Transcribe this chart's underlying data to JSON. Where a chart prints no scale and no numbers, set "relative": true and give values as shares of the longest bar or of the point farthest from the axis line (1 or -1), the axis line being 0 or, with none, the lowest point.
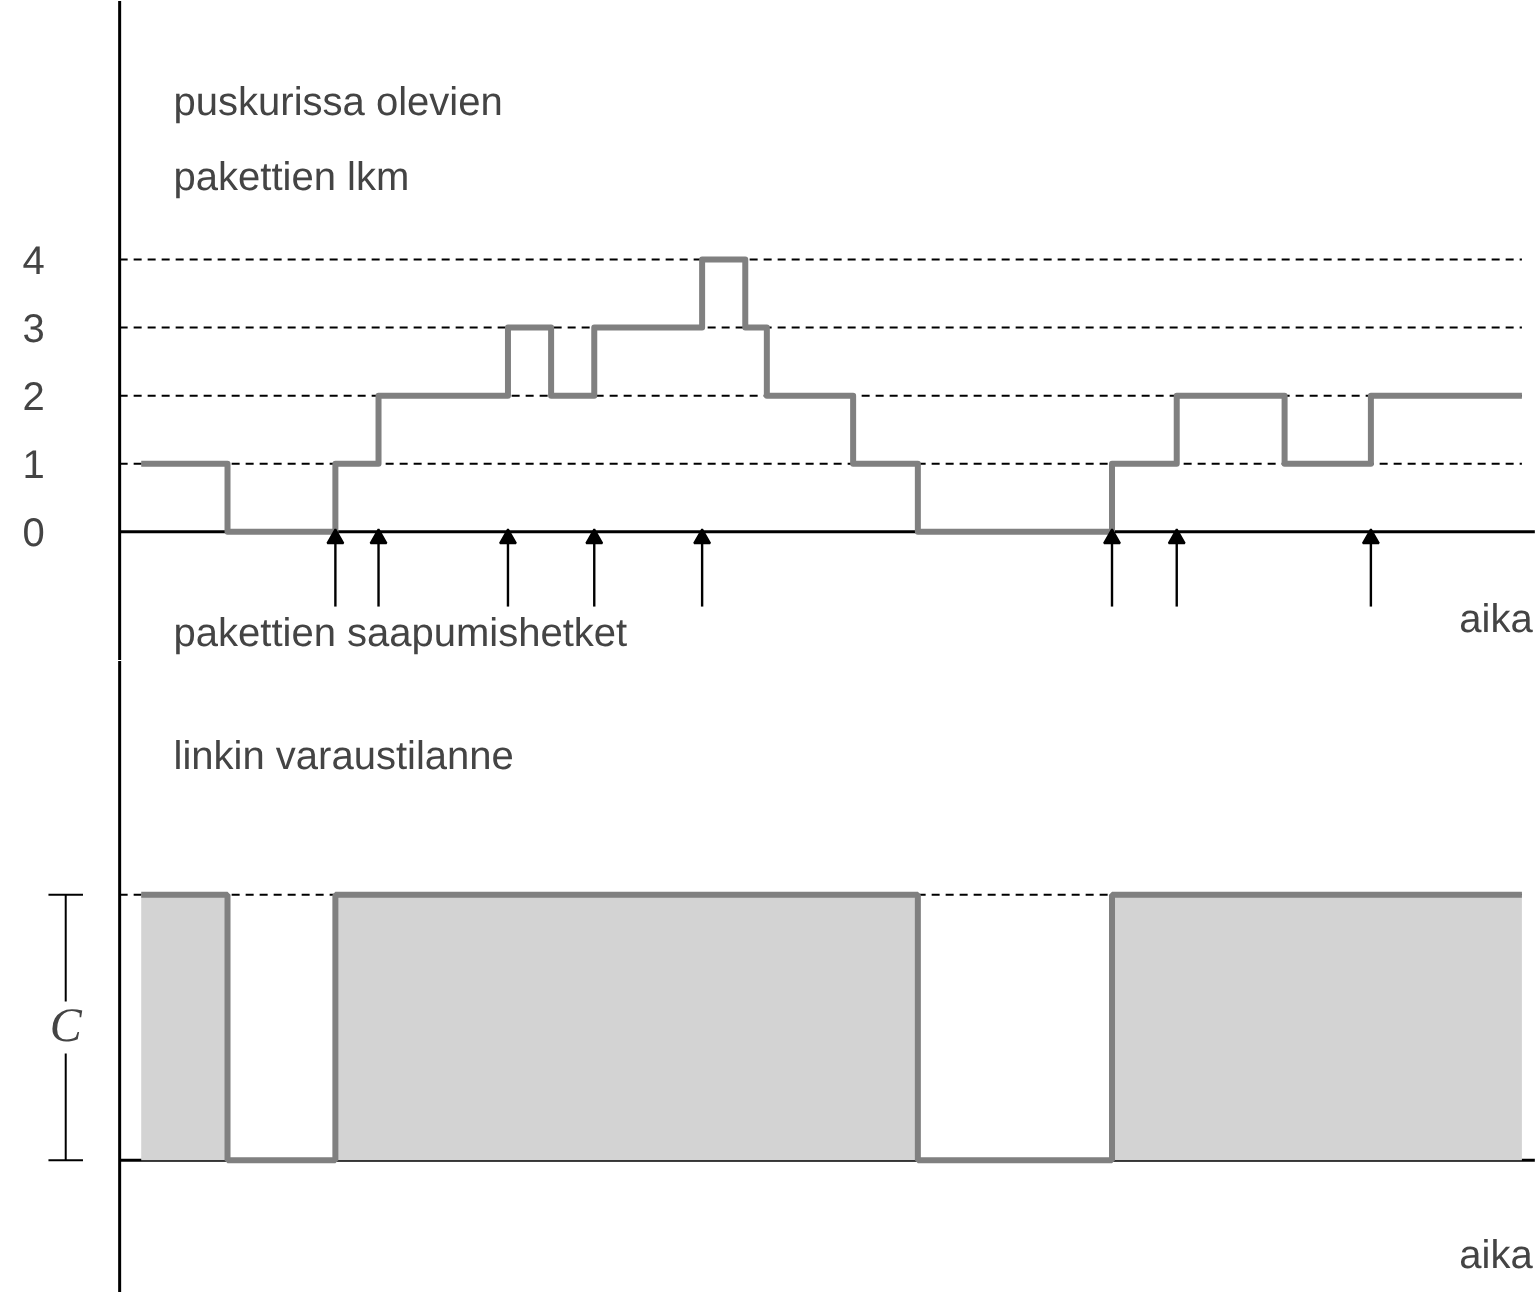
{
  "chart_data": [
    {
      "type": "step",
      "title": "puskurissa olevien pakettien lkm",
      "xlabel": "aika",
      "categories": [
        null,
        null,
        null,
        null,
        null,
        null,
        null,
        null,
        null,
        null,
        null,
        null,
        null,
        null,
        null,
        null,
        null,
        null,
        null,
        null,
        null,
        null,
        null,
        null,
        null,
        null,
        null,
        null,
        null,
        null,
        null,
        null,
        null,
        null,
        null,
        null,
        null,
        null,
        null,
        null,
        null,
        null,
        null,
        null,
        null,
        null,
        null,
        null,
        null,
        null,
        null,
        null,
        null,
        null,
        null,
        null,
        null,
        null,
        null,
        null,
        null,
        null,
        null,
        null,
        null
      ],
      "series": [
        {
          "color": "#808080",
          "values": [
            1,
            1,
            1,
            1,
            0,
            0,
            0,
            0,
            0,
            1,
            1,
            2,
            2,
            2,
            2,
            2,
            2,
            3,
            3,
            2,
            2,
            3,
            3,
            3,
            3,
            3,
            4,
            4,
            3,
            2,
            2,
            2,
            2,
            1,
            1,
            1,
            0,
            0,
            0,
            0,
            0,
            0,
            0,
            0,
            0,
            1,
            1,
            1,
            2,
            2,
            2,
            2,
            2,
            1,
            1,
            1,
            1,
            2,
            2,
            2,
            2,
            2,
            2,
            2,
            2
          ]
        },
        {
          "type": "scatter",
          "marker": "triangle",
          "color": "#000000",
          "values": [
            null,
            null,
            null,
            null,
            null,
            null,
            null,
            null,
            null,
            -0.1,
            null,
            -0.1,
            null,
            null,
            null,
            null,
            null,
            -0.1,
            null,
            null,
            null,
            -0.1,
            null,
            null,
            null,
            null,
            -0.1,
            null,
            null,
            null,
            null,
            null,
            null,
            null,
            null,
            null,
            null,
            null,
            null,
            null,
            null,
            null,
            null,
            null,
            null,
            -0.1,
            null,
            null,
            -0.1,
            null,
            null,
            null,
            null,
            null,
            null,
            null,
            null,
            -0.1,
            null,
            null,
            null,
            null,
            null,
            null,
            null
          ],
          "errors": [
            null,
            null,
            null,
            null,
            null,
            null,
            null,
            null,
            null,
            [
              -1.1,
              -0.1
            ],
            null,
            [
              -1.1,
              -0.1
            ],
            null,
            null,
            null,
            null,
            null,
            [
              -1.1,
              -0.1
            ],
            null,
            null,
            null,
            [
              -1.1,
              -0.1
            ],
            null,
            null,
            null,
            null,
            [
              -1.1,
              -0.1
            ],
            null,
            null,
            null,
            null,
            null,
            null,
            null,
            null,
            null,
            null,
            null,
            null,
            null,
            null,
            null,
            null,
            null,
            null,
            [
              -1.1,
              -0.1
            ],
            null,
            null,
            [
              -1.1,
              -0.1
            ],
            null,
            null,
            null,
            null,
            null,
            null,
            null,
            null,
            [
              -1.1,
              -0.1
            ],
            null,
            null,
            null,
            null,
            null,
            null,
            null
          ]
        }
      ],
      "ylim": [
        -1.9,
        7.8
      ],
      "yticks": [
        0,
        1,
        2,
        3,
        4
      ],
      "grid": "y",
      "tick_labels": "y",
      "annotations": [
        "pakettien saapumishetket"
      ]
    },
    {
      "type": "area",
      "relative": true,
      "title": "linkin varaustilanne",
      "xlabel": "aika",
      "ylabel": "C",
      "categories": [
        null,
        null,
        null,
        null,
        null,
        null,
        null,
        null,
        null,
        null,
        null,
        null,
        null,
        null,
        null,
        null,
        null,
        null,
        null,
        null,
        null,
        null,
        null,
        null,
        null,
        null,
        null,
        null,
        null,
        null,
        null,
        null,
        null,
        null,
        null,
        null,
        null,
        null,
        null,
        null,
        null,
        null,
        null,
        null,
        null,
        null,
        null,
        null,
        null,
        null,
        null,
        null,
        null,
        null,
        null,
        null,
        null,
        null,
        null,
        null,
        null,
        null,
        null,
        null,
        null
      ],
      "series": [
        {
          "color": "#d3d3d3",
          "values": [
            1,
            1,
            1,
            1,
            0,
            0,
            0,
            0,
            0,
            1,
            1,
            1,
            1,
            1,
            1,
            1,
            1,
            1,
            1,
            1,
            1,
            1,
            1,
            1,
            1,
            1,
            1,
            1,
            1,
            1,
            1,
            1,
            1,
            1,
            1,
            1,
            0,
            0,
            0,
            0,
            0,
            0,
            0,
            0,
            0,
            1,
            1,
            1,
            1,
            1,
            1,
            1,
            1,
            1,
            1,
            1,
            1,
            1,
            1,
            1,
            1,
            1,
            1,
            1,
            1
          ]
        }
      ],
      "ref_lines": [
        {
          "axis": "y",
          "value": 1,
          "line_style": "dashed"
        }
      ],
      "tick_labels": false
    }
  ]
}
